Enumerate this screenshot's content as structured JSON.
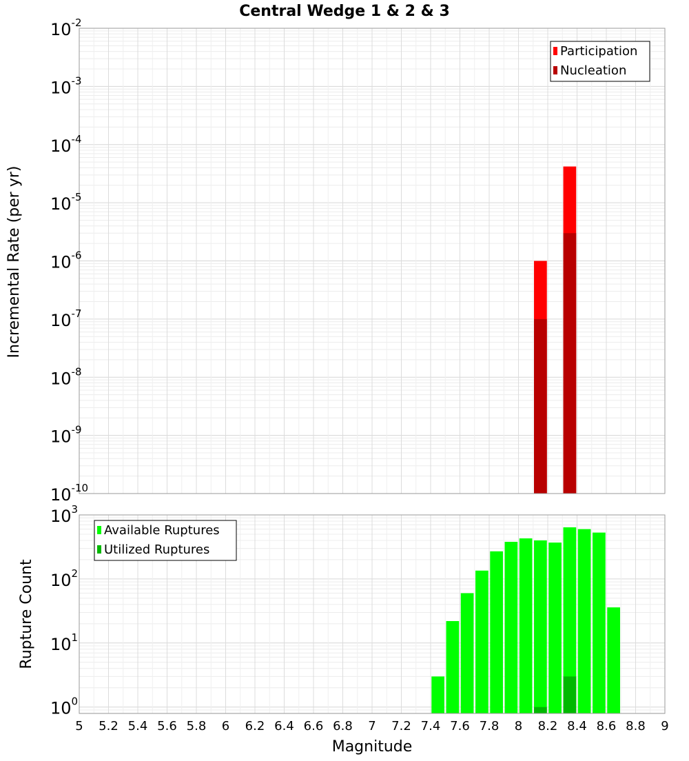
{
  "chart_data": {
    "type": "bar",
    "title": "Central Wedge 1 & 2 & 3",
    "xlabel": "Magnitude",
    "xlim": [
      5,
      9
    ],
    "x_ticks": [
      "5",
      "5.2",
      "5.4",
      "5.6",
      "5.8",
      "6",
      "6.2",
      "6.4",
      "6.6",
      "6.8",
      "7",
      "7.2",
      "7.4",
      "7.6",
      "7.8",
      "8",
      "8.2",
      "8.4",
      "8.6",
      "8.8",
      "9"
    ],
    "bin_width": 0.1,
    "panels": [
      {
        "id": "rate",
        "ylabel": "Incremental Rate (per yr)",
        "yscale": "log",
        "ylim_exp": [
          -10,
          -2
        ],
        "y_tick_exponents": [
          "-10",
          "-9",
          "-8",
          "-7",
          "-6",
          "-5",
          "-4",
          "-3",
          "-2"
        ],
        "legend": [
          "Participation",
          "Nucleation"
        ],
        "series": [
          {
            "name": "Participation",
            "color": "#ff0000",
            "x": [
              8.15,
              8.35
            ],
            "values": [
              1e-06,
              4.2e-05
            ]
          },
          {
            "name": "Nucleation",
            "color": "#b80000",
            "x": [
              8.15,
              8.35
            ],
            "values": [
              1e-07,
              3e-06
            ]
          }
        ]
      },
      {
        "id": "count",
        "ylabel": "Rupture Count",
        "yscale": "log",
        "ylim_exp": [
          -0.1,
          3
        ],
        "y_tick_exponents": [
          "0",
          "1",
          "2",
          "3"
        ],
        "legend": [
          "Available Ruptures",
          "Utilized Ruptures"
        ],
        "series": [
          {
            "name": "Available Ruptures",
            "color": "#00ff00",
            "x": [
              7.45,
              7.55,
              7.65,
              7.75,
              7.85,
              7.95,
              8.05,
              8.15,
              8.25,
              8.35,
              8.45,
              8.55,
              8.65
            ],
            "values": [
              3,
              22,
              60,
              135,
              270,
              380,
              430,
              400,
              370,
              640,
              600,
              530,
              36
            ]
          },
          {
            "name": "Utilized Ruptures",
            "color": "#00b800",
            "x": [
              8.15,
              8.35
            ],
            "values": [
              1,
              3
            ]
          }
        ]
      }
    ]
  }
}
